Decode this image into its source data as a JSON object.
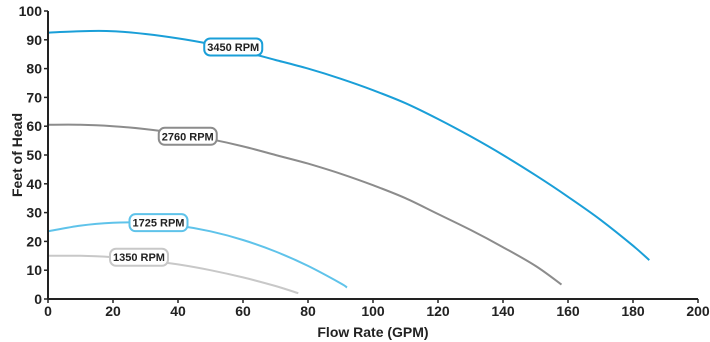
{
  "chart_data": {
    "type": "line",
    "xlabel": "Flow Rate (GPM)",
    "ylabel": "Feet of Head",
    "xlim": [
      0,
      200
    ],
    "ylim": [
      0,
      100
    ],
    "xticks": [
      0,
      20,
      40,
      60,
      80,
      100,
      120,
      140,
      160,
      180,
      200
    ],
    "yticks": [
      0,
      10,
      20,
      30,
      40,
      50,
      60,
      70,
      80,
      90,
      100
    ],
    "grid": false,
    "series": [
      {
        "name": "3450 RPM",
        "color": "#1a9fd8",
        "x": [
          0,
          10,
          20,
          30,
          40,
          50,
          60,
          70,
          80,
          90,
          100,
          110,
          120,
          130,
          140,
          150,
          160,
          170,
          180,
          185
        ],
        "y": [
          92.5,
          93,
          93,
          92,
          90.5,
          88.5,
          86,
          83,
          80,
          76.5,
          72.5,
          68,
          62.5,
          56.5,
          50,
          43,
          35.5,
          27.5,
          18.5,
          13.5
        ]
      },
      {
        "name": "2760 RPM",
        "color": "#8c8c8c",
        "x": [
          0,
          10,
          20,
          30,
          40,
          50,
          60,
          70,
          80,
          90,
          100,
          110,
          120,
          130,
          140,
          150,
          158
        ],
        "y": [
          60.5,
          60.5,
          60,
          59,
          57.5,
          55.5,
          53,
          50,
          47,
          43.5,
          39.5,
          35,
          29.5,
          24,
          18,
          11.5,
          5
        ]
      },
      {
        "name": "1725 RPM",
        "color": "#5fc3ea",
        "x": [
          0,
          10,
          20,
          30,
          40,
          50,
          60,
          70,
          80,
          90,
          92
        ],
        "y": [
          23.5,
          25.5,
          26.5,
          26.5,
          25.5,
          23.5,
          20.5,
          16.5,
          11.5,
          5.5,
          4
        ]
      },
      {
        "name": "1350 RPM",
        "color": "#c8c8c8",
        "x": [
          0,
          10,
          20,
          30,
          40,
          50,
          60,
          70,
          77
        ],
        "y": [
          15,
          15,
          14.5,
          13.5,
          12,
          10,
          7.5,
          4.5,
          2
        ]
      }
    ],
    "annotations": [
      {
        "series": "3450 RPM",
        "text": "3450 RPM",
        "x": 57,
        "y": 87.5
      },
      {
        "series": "2760 RPM",
        "text": "2760 RPM",
        "x": 43,
        "y": 56.5
      },
      {
        "series": "1725 RPM",
        "text": "1725 RPM",
        "x": 34,
        "y": 26.5
      },
      {
        "series": "1350 RPM",
        "text": "1350 RPM",
        "x": 28,
        "y": 14.5
      }
    ]
  }
}
